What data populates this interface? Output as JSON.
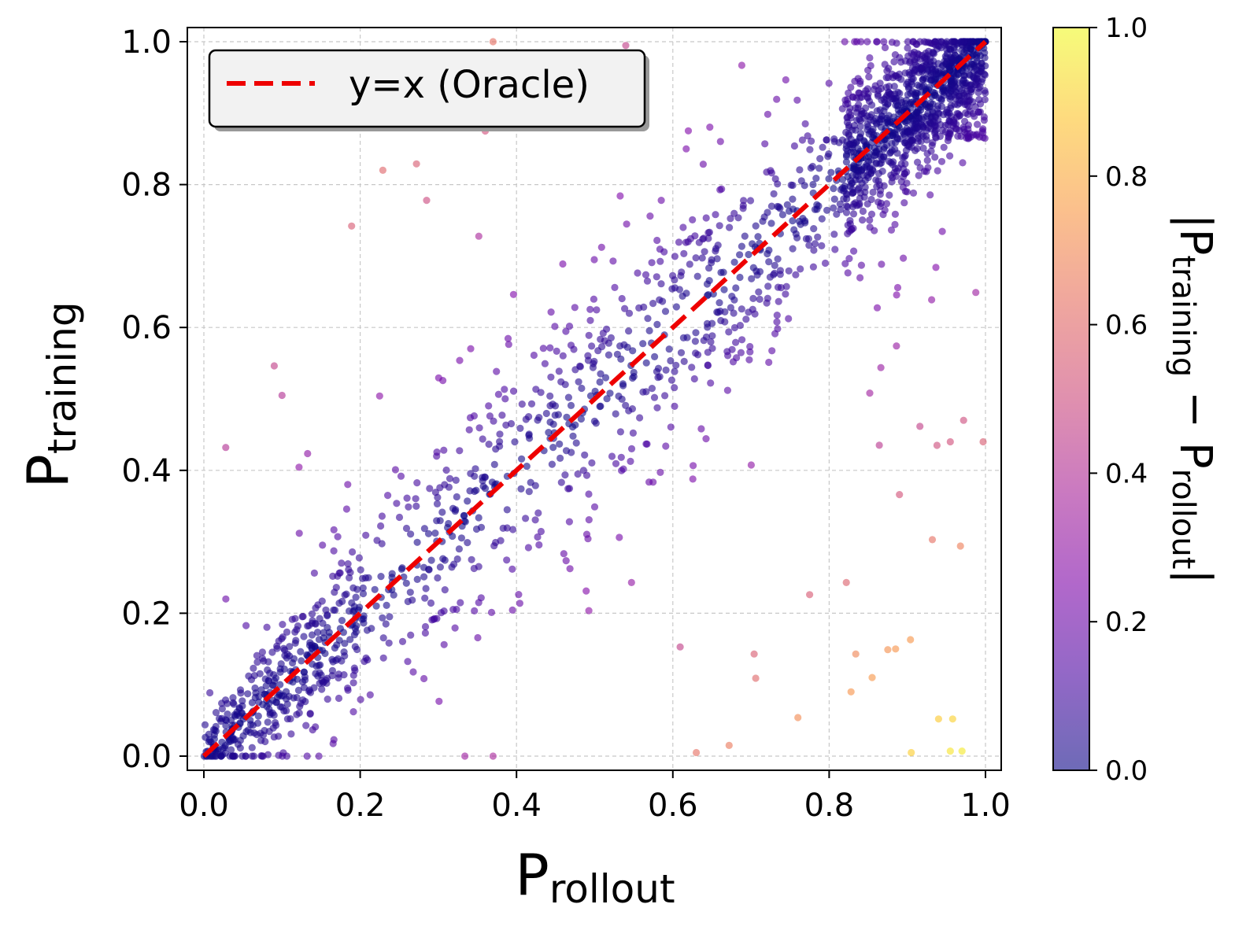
{
  "chart_data": {
    "type": "scatter",
    "title": "",
    "xlabel": {
      "main": "P",
      "subscript": "rollout"
    },
    "ylabel": {
      "main": "P",
      "subscript": "training"
    },
    "xlim": [
      -0.02,
      1.02
    ],
    "ylim": [
      -0.02,
      1.02
    ],
    "xticks": [
      "0.0",
      "0.2",
      "0.4",
      "0.6",
      "0.8",
      "1.0"
    ],
    "yticks": [
      "0.0",
      "0.2",
      "0.4",
      "0.6",
      "0.8",
      "1.0"
    ],
    "grid": true,
    "legend": {
      "location": "top-left",
      "entries": [
        {
          "label": "y=x (Oracle)",
          "color": "#ee0000",
          "style": "dashed"
        }
      ]
    },
    "reference_line": {
      "label": "y=x (Oracle)",
      "from": [
        0,
        0
      ],
      "to": [
        1,
        1
      ],
      "color": "#ee0000"
    },
    "colorbar": {
      "label": {
        "pre": "|P",
        "sub1": "training",
        "mid": " − P",
        "sub2": "rollout",
        "post": "|"
      },
      "range": [
        0.0,
        1.0
      ],
      "ticks": [
        "0.0",
        "0.2",
        "0.4",
        "0.6",
        "0.8",
        "1.0"
      ],
      "colormap": "plasma"
    },
    "point_alpha": 0.6,
    "notable_points": [
      {
        "x": 0.905,
        "y": 0.005
      },
      {
        "x": 0.94,
        "y": 0.052
      },
      {
        "x": 0.958,
        "y": 0.052
      },
      {
        "x": 0.955,
        "y": 0.007
      },
      {
        "x": 0.97,
        "y": 0.007
      },
      {
        "x": 0.76,
        "y": 0.054
      },
      {
        "x": 0.828,
        "y": 0.09
      },
      {
        "x": 0.834,
        "y": 0.143
      },
      {
        "x": 0.855,
        "y": 0.11
      },
      {
        "x": 0.875,
        "y": 0.149
      },
      {
        "x": 0.885,
        "y": 0.15
      },
      {
        "x": 0.904,
        "y": 0.163
      },
      {
        "x": 0.968,
        "y": 0.294
      },
      {
        "x": 0.932,
        "y": 0.303
      },
      {
        "x": 0.822,
        "y": 0.243
      },
      {
        "x": 0.775,
        "y": 0.226
      },
      {
        "x": 0.706,
        "y": 0.109
      },
      {
        "x": 0.704,
        "y": 0.143
      },
      {
        "x": 0.672,
        "y": 0.015
      },
      {
        "x": 0.63,
        "y": 0.005
      },
      {
        "x": 0.37,
        "y": 1.0
      },
      {
        "x": 0.37,
        "y": 0.0
      },
      {
        "x": 0.229,
        "y": 0.82
      },
      {
        "x": 0.272,
        "y": 0.829
      },
      {
        "x": 0.189,
        "y": 0.742
      },
      {
        "x": 0.285,
        "y": 0.778
      },
      {
        "x": 0.36,
        "y": 0.875
      },
      {
        "x": 0.028,
        "y": 0.432
      },
      {
        "x": 0.1,
        "y": 0.505
      },
      {
        "x": 0.938,
        "y": 0.435
      },
      {
        "x": 0.955,
        "y": 0.44
      },
      {
        "x": 0.972,
        "y": 0.47
      },
      {
        "x": 0.997,
        "y": 0.44
      }
    ],
    "cluster": {
      "description": "dense band of points scattered around y=x, widening with x",
      "n_points": 2200,
      "seed": 7
    }
  }
}
